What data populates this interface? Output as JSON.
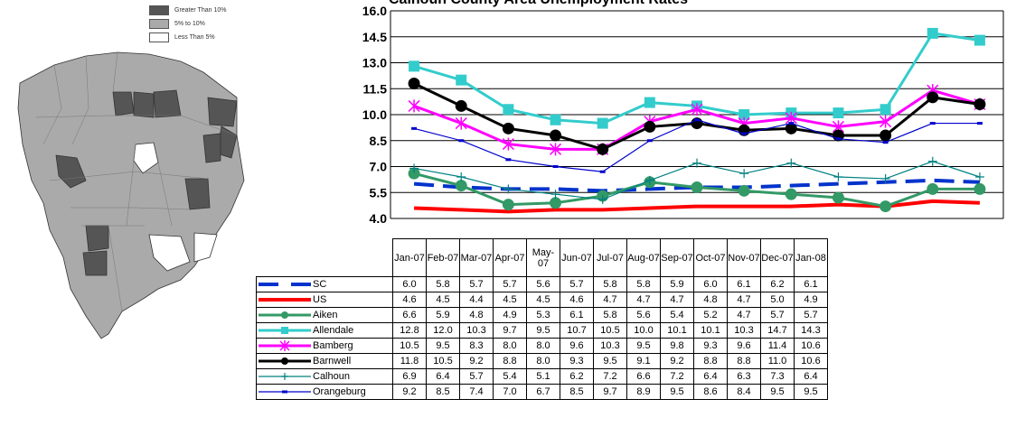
{
  "map_legend": [
    {
      "label": "Greater Than 10%",
      "color": "#555555"
    },
    {
      "label": "5% to 10%",
      "color": "#aaaaaa"
    },
    {
      "label": "Less Than 5%",
      "color": "#ffffff"
    }
  ],
  "chart_data": {
    "type": "line",
    "title": "Calhoun County Area Unemployment Rates",
    "categories": [
      "Jan-07",
      "Feb-07",
      "Mar-07",
      "Apr-07",
      "May-07",
      "Jun-07",
      "Jul-07",
      "Aug-07",
      "Sep-07",
      "Oct-07",
      "Nov-07",
      "Dec-07",
      "Jan-08"
    ],
    "ylim": [
      4.0,
      16.0
    ],
    "yticks": [
      "4.0",
      "5.5",
      "7.0",
      "8.5",
      "10.0",
      "11.5",
      "13.0",
      "14.5",
      "16.0"
    ],
    "grid": true,
    "series": [
      {
        "name": "SC",
        "color": "#0033cc",
        "style": "dash",
        "marker": "none",
        "values": [
          6.0,
          5.8,
          5.7,
          5.7,
          5.6,
          5.7,
          5.8,
          5.8,
          5.9,
          6.0,
          6.1,
          6.2,
          6.1
        ]
      },
      {
        "name": "US",
        "color": "#ff0000",
        "style": "solid-thick",
        "marker": "none",
        "values": [
          4.6,
          4.5,
          4.4,
          4.5,
          4.5,
          4.6,
          4.7,
          4.7,
          4.7,
          4.8,
          4.7,
          5.0,
          4.9
        ]
      },
      {
        "name": "Aiken",
        "color": "#339966",
        "style": "solid",
        "marker": "circle",
        "values": [
          6.6,
          5.9,
          4.8,
          4.9,
          5.3,
          6.1,
          5.8,
          5.6,
          5.4,
          5.2,
          4.7,
          5.7,
          5.7
        ]
      },
      {
        "name": "Allendale",
        "color": "#33cccc",
        "style": "solid",
        "marker": "square",
        "values": [
          12.8,
          12.0,
          10.3,
          9.7,
          9.5,
          10.7,
          10.5,
          10.0,
          10.1,
          10.1,
          10.3,
          14.7,
          14.3
        ]
      },
      {
        "name": "Bamberg",
        "color": "#ff00ff",
        "style": "solid",
        "marker": "star",
        "values": [
          10.5,
          9.5,
          8.3,
          8.0,
          8.0,
          9.6,
          10.3,
          9.5,
          9.8,
          9.3,
          9.6,
          11.4,
          10.6
        ]
      },
      {
        "name": "Barnwell",
        "color": "#000000",
        "style": "solid",
        "marker": "circle",
        "values": [
          11.8,
          10.5,
          9.2,
          8.8,
          8.0,
          9.3,
          9.5,
          9.1,
          9.2,
          8.8,
          8.8,
          11.0,
          10.6
        ]
      },
      {
        "name": "Calhoun",
        "color": "#008080",
        "style": "thin",
        "marker": "plus",
        "values": [
          6.9,
          6.4,
          5.7,
          5.4,
          5.1,
          6.2,
          7.2,
          6.6,
          7.2,
          6.4,
          6.3,
          7.3,
          6.4
        ]
      },
      {
        "name": "Orangeburg",
        "color": "#0000cc",
        "style": "thin",
        "marker": "dash",
        "values": [
          9.2,
          8.5,
          7.4,
          7.0,
          6.7,
          8.5,
          9.7,
          8.9,
          9.5,
          8.6,
          8.4,
          9.5,
          9.5
        ]
      }
    ]
  },
  "table_rows": [
    {
      "label": "SC",
      "values": [
        "6.0",
        "5.8",
        "5.7",
        "5.7",
        "5.6",
        "5.7",
        "5.8",
        "5.8",
        "5.9",
        "6.0",
        "6.1",
        "6.2",
        "6.1"
      ]
    },
    {
      "label": "US",
      "values": [
        "4.6",
        "4.5",
        "4.4",
        "4.5",
        "4.5",
        "4.6",
        "4.7",
        "4.7",
        "4.7",
        "4.8",
        "4.7",
        "5.0",
        "4.9"
      ]
    },
    {
      "label": "Aiken",
      "values": [
        "6.6",
        "5.9",
        "4.8",
        "4.9",
        "5.3",
        "6.1",
        "5.8",
        "5.6",
        "5.4",
        "5.2",
        "4.7",
        "5.7",
        "5.7"
      ]
    },
    {
      "label": "Allendale",
      "values": [
        "12.8",
        "12.0",
        "10.3",
        "9.7",
        "9.5",
        "10.7",
        "10.5",
        "10.0",
        "10.1",
        "10.1",
        "10.3",
        "14.7",
        "14.3"
      ]
    },
    {
      "label": "Bamberg",
      "values": [
        "10.5",
        "9.5",
        "8.3",
        "8.0",
        "8.0",
        "9.6",
        "10.3",
        "9.5",
        "9.8",
        "9.3",
        "9.6",
        "11.4",
        "10.6"
      ]
    },
    {
      "label": "Barnwell",
      "values": [
        "11.8",
        "10.5",
        "9.2",
        "8.8",
        "8.0",
        "9.3",
        "9.5",
        "9.1",
        "9.2",
        "8.8",
        "8.8",
        "11.0",
        "10.6"
      ]
    },
    {
      "label": "Calhoun",
      "values": [
        "6.9",
        "6.4",
        "5.7",
        "5.4",
        "5.1",
        "6.2",
        "7.2",
        "6.6",
        "7.2",
        "6.4",
        "6.3",
        "7.3",
        "6.4"
      ]
    },
    {
      "label": "Orangeburg",
      "values": [
        "9.2",
        "8.5",
        "7.4",
        "7.0",
        "6.7",
        "8.5",
        "9.7",
        "8.9",
        "9.5",
        "8.6",
        "8.4",
        "9.5",
        "9.5"
      ]
    }
  ]
}
